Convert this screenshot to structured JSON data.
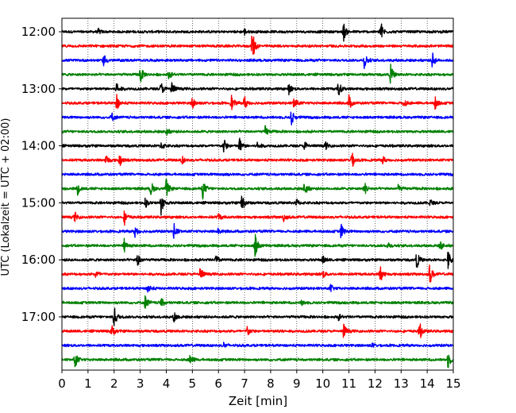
{
  "chart_data": {
    "type": "line",
    "title": "",
    "xlabel": "Zeit  [min]",
    "ylabel": "UTC (Lokalzeit = UTC + 02:00)",
    "xlim": [
      0,
      15
    ],
    "x_ticks": [
      0,
      1,
      2,
      3,
      4,
      5,
      6,
      7,
      8,
      9,
      10,
      11,
      12,
      13,
      14,
      15
    ],
    "y_ticks": [
      "12:00",
      "13:00",
      "14:00",
      "15:00",
      "16:00",
      "17:00"
    ],
    "grid": "vertical dotted at each minute",
    "trace_interval_min": 15,
    "series_colors": [
      "#000000",
      "#ff0000",
      "#0000ff",
      "#008000"
    ],
    "series": [
      {
        "start": "12:00",
        "events": [
          [
            10.8,
            0.9
          ],
          [
            12.2,
            1.4
          ],
          [
            7.0,
            0.3
          ],
          [
            1.4,
            0.25
          ]
        ]
      },
      {
        "start": "12:15",
        "events": [
          [
            7.3,
            1.8
          ]
        ]
      },
      {
        "start": "12:30",
        "events": [
          [
            1.6,
            0.8
          ],
          [
            11.6,
            0.9
          ],
          [
            14.2,
            0.8
          ]
        ]
      },
      {
        "start": "12:45",
        "events": [
          [
            3.0,
            1.0
          ],
          [
            12.6,
            1.0
          ],
          [
            4.1,
            0.4
          ]
        ]
      },
      {
        "start": "13:00",
        "events": [
          [
            2.1,
            0.8
          ],
          [
            3.8,
            0.7
          ],
          [
            4.2,
            0.9
          ],
          [
            8.7,
            0.5
          ],
          [
            10.6,
            0.9
          ]
        ]
      },
      {
        "start": "13:15",
        "events": [
          [
            2.1,
            0.9
          ],
          [
            5.0,
            0.6
          ],
          [
            6.5,
            0.8
          ],
          [
            7.0,
            0.8
          ],
          [
            8.9,
            0.8
          ],
          [
            11.0,
            0.8
          ],
          [
            13.1,
            0.5
          ],
          [
            14.3,
            0.7
          ]
        ]
      },
      {
        "start": "13:30",
        "events": [
          [
            1.9,
            0.5
          ],
          [
            8.8,
            0.9
          ]
        ]
      },
      {
        "start": "13:45",
        "events": [
          [
            4.0,
            0.4
          ],
          [
            7.8,
            0.6
          ]
        ]
      },
      {
        "start": "14:00",
        "events": [
          [
            3.8,
            0.5
          ],
          [
            6.2,
            0.8
          ],
          [
            6.8,
            0.9
          ],
          [
            7.5,
            0.5
          ],
          [
            9.3,
            0.5
          ],
          [
            10.1,
            0.4
          ]
        ]
      },
      {
        "start": "14:15",
        "events": [
          [
            1.7,
            0.6
          ],
          [
            2.2,
            0.8
          ],
          [
            4.6,
            0.4
          ],
          [
            11.1,
            1.0
          ],
          [
            12.3,
            0.4
          ]
        ]
      },
      {
        "start": "14:30",
        "events": [
          [
            6.2,
            0.2
          ]
        ]
      },
      {
        "start": "14:45",
        "events": [
          [
            0.6,
            0.6
          ],
          [
            3.4,
            0.9
          ],
          [
            4.0,
            1.0
          ],
          [
            5.4,
            1.0
          ],
          [
            9.3,
            0.9
          ],
          [
            11.6,
            0.7
          ],
          [
            12.9,
            0.4
          ]
        ]
      },
      {
        "start": "15:00",
        "events": [
          [
            3.2,
            0.5
          ],
          [
            3.8,
            1.2
          ],
          [
            6.9,
            1.1
          ],
          [
            9.0,
            0.4
          ],
          [
            14.1,
            0.4
          ]
        ]
      },
      {
        "start": "15:15",
        "events": [
          [
            0.5,
            0.5
          ],
          [
            2.4,
            0.7
          ],
          [
            6.0,
            0.4
          ],
          [
            8.5,
            0.4
          ]
        ]
      },
      {
        "start": "15:30",
        "events": [
          [
            2.8,
            0.7
          ],
          [
            4.3,
            0.8
          ],
          [
            10.7,
            0.8
          ],
          [
            6.0,
            0.3
          ]
        ]
      },
      {
        "start": "15:45",
        "events": [
          [
            2.4,
            0.8
          ],
          [
            7.4,
            1.4
          ],
          [
            12.5,
            0.4
          ],
          [
            14.5,
            0.5
          ]
        ]
      },
      {
        "start": "16:00",
        "events": [
          [
            2.9,
            0.9
          ],
          [
            5.9,
            0.5
          ],
          [
            10.0,
            0.4
          ],
          [
            13.6,
            0.9
          ],
          [
            14.8,
            1.0
          ]
        ]
      },
      {
        "start": "16:15",
        "events": [
          [
            1.3,
            0.5
          ],
          [
            5.3,
            0.8
          ],
          [
            10.0,
            0.4
          ],
          [
            12.2,
            1.0
          ],
          [
            14.1,
            1.1
          ]
        ]
      },
      {
        "start": "16:30",
        "events": [
          [
            3.3,
            0.6
          ],
          [
            10.3,
            0.4
          ]
        ]
      },
      {
        "start": "16:45",
        "events": [
          [
            3.2,
            0.8
          ],
          [
            3.8,
            0.6
          ],
          [
            9.2,
            0.3
          ]
        ]
      },
      {
        "start": "17:00",
        "events": [
          [
            2.0,
            1.2
          ],
          [
            4.3,
            0.6
          ],
          [
            10.6,
            0.3
          ]
        ]
      },
      {
        "start": "17:15",
        "events": [
          [
            1.9,
            0.7
          ],
          [
            7.1,
            0.6
          ],
          [
            10.8,
            0.8
          ],
          [
            13.7,
            1.0
          ],
          [
            8.3,
            0.3
          ]
        ]
      },
      {
        "start": "17:30",
        "events": [
          [
            6.2,
            0.3
          ],
          [
            11.9,
            0.2
          ]
        ]
      },
      {
        "start": "17:45",
        "events": [
          [
            0.5,
            0.9
          ],
          [
            4.9,
            0.7
          ],
          [
            14.8,
            0.9
          ]
        ]
      }
    ]
  }
}
